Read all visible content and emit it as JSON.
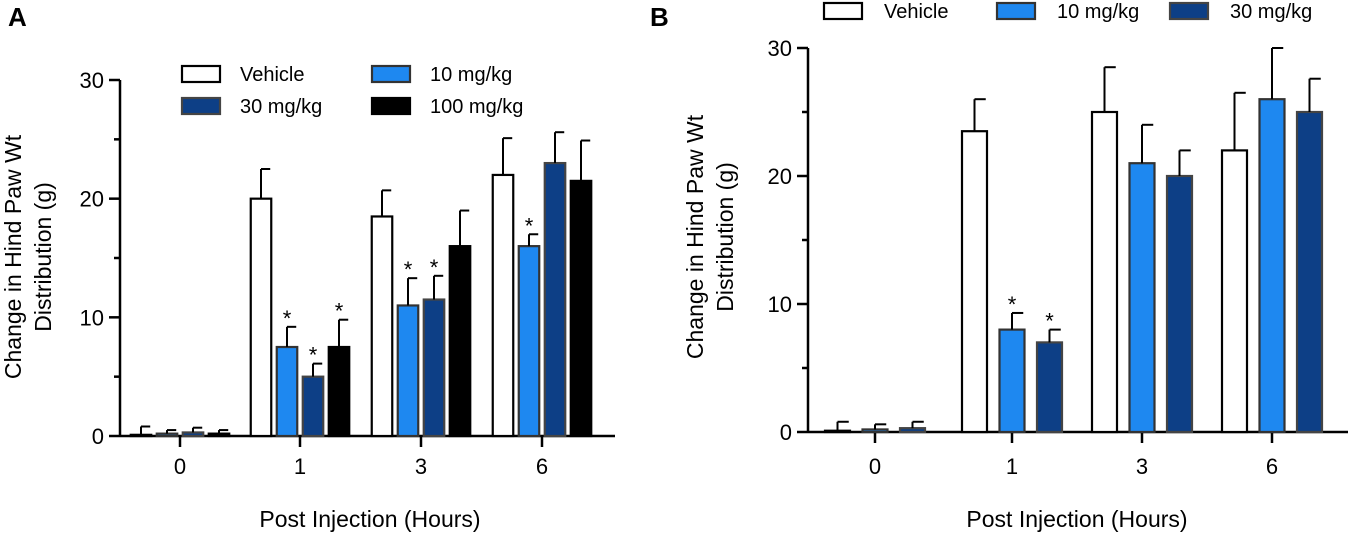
{
  "series_colors": {
    "Vehicle": "#ffffff",
    "10 mg/kg": "#1e88f0",
    "30 mg/kg": "#0d3f86",
    "100 mg/kg": "#000000"
  },
  "series_strokes": {
    "Vehicle": "#000000",
    "10 mg/kg": "#333333",
    "30 mg/kg": "#444444",
    "100 mg/kg": "#000000"
  },
  "chart_data": [
    {
      "panel_label": "A",
      "type": "bar",
      "title": "",
      "xlabel": "Post Injection (Hours)",
      "ylabel_lines": [
        "Change in Hind Paw Wt",
        "Distribution (g)"
      ],
      "ylim": [
        0,
        30
      ],
      "yticks": [
        0,
        10,
        20,
        30
      ],
      "categories": [
        "0",
        "1",
        "3",
        "6"
      ],
      "legend_position": "top",
      "legend_rows": [
        [
          "Vehicle",
          "10 mg/kg"
        ],
        [
          "30 mg/kg",
          "100 mg/kg"
        ]
      ],
      "series": [
        {
          "name": "Vehicle",
          "values": [
            0.1,
            20,
            18.5,
            22
          ],
          "errors": [
            0.7,
            2.5,
            2.2,
            3.1
          ],
          "significant": [
            false,
            false,
            false,
            false
          ]
        },
        {
          "name": "10 mg/kg",
          "values": [
            0.2,
            7.5,
            11,
            16
          ],
          "errors": [
            0.3,
            1.7,
            2.3,
            1.0
          ],
          "significant": [
            false,
            true,
            true,
            true
          ]
        },
        {
          "name": "30 mg/kg",
          "values": [
            0.3,
            5,
            11.5,
            23
          ],
          "errors": [
            0.4,
            1.1,
            2.0,
            2.6
          ],
          "significant": [
            false,
            true,
            true,
            false
          ]
        },
        {
          "name": "100 mg/kg",
          "values": [
            0.2,
            7.5,
            16,
            21.5
          ],
          "errors": [
            0.3,
            2.3,
            3.0,
            3.4
          ],
          "significant": [
            false,
            true,
            false,
            false
          ]
        }
      ],
      "significance_marker": "*"
    },
    {
      "panel_label": "B",
      "type": "bar",
      "title": "",
      "xlabel": "Post Injection (Hours)",
      "ylabel_lines": [
        "Change in Hind Paw Wt",
        "Distribution (g)"
      ],
      "ylim": [
        0,
        30
      ],
      "yticks": [
        0,
        10,
        20,
        30
      ],
      "categories": [
        "0",
        "1",
        "3",
        "6"
      ],
      "legend_position": "top",
      "legend_rows": [
        [
          "Vehicle",
          "10 mg/kg",
          "30 mg/kg"
        ]
      ],
      "series": [
        {
          "name": "Vehicle",
          "values": [
            0.1,
            23.5,
            25,
            22
          ],
          "errors": [
            0.7,
            2.5,
            3.5,
            4.5
          ],
          "significant": [
            false,
            false,
            false,
            false
          ]
        },
        {
          "name": "10 mg/kg",
          "values": [
            0.2,
            8,
            21,
            26
          ],
          "errors": [
            0.4,
            1.3,
            3.0,
            4.0
          ],
          "significant": [
            false,
            true,
            false,
            false
          ]
        },
        {
          "name": "30 mg/kg",
          "values": [
            0.3,
            7,
            20,
            25
          ],
          "errors": [
            0.5,
            1.0,
            2.0,
            2.6
          ],
          "significant": [
            false,
            true,
            false,
            false
          ]
        }
      ],
      "significance_marker": "*"
    }
  ]
}
